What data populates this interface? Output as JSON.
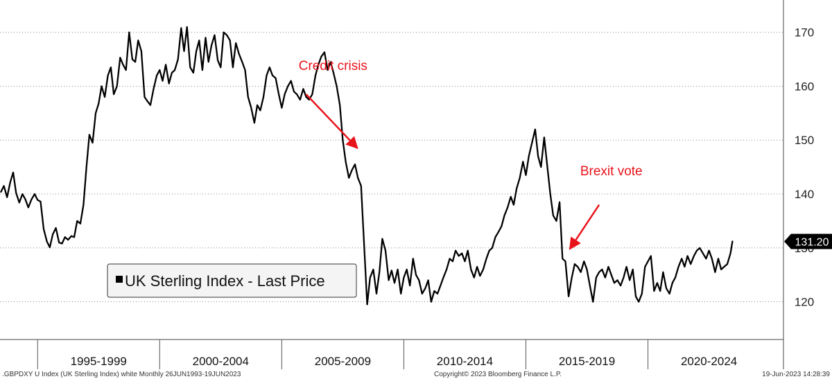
{
  "chart_data": {
    "type": "line",
    "yticks": [
      120,
      130,
      140,
      150,
      160,
      170
    ],
    "ylim": [
      113,
      176
    ],
    "xlim": [
      1993.46,
      2025.55
    ],
    "x_periods": [
      {
        "label": "1995-1999",
        "start": 1995.0,
        "end": 2000.0
      },
      {
        "label": "2000-2004",
        "start": 2000.0,
        "end": 2005.0
      },
      {
        "label": "2005-2009",
        "start": 2005.0,
        "end": 2010.0
      },
      {
        "label": "2010-2014",
        "start": 2010.0,
        "end": 2015.0
      },
      {
        "label": "2015-2019",
        "start": 2015.0,
        "end": 2020.0
      },
      {
        "label": "2020-2024",
        "start": 2020.0,
        "end": 2025.0
      }
    ],
    "series": [
      {
        "name": "UK Sterling Index - Last Price",
        "color": "#000000",
        "points": [
          [
            1993.5,
            140.4
          ],
          [
            1993.62,
            141.5
          ],
          [
            1993.75,
            139.4
          ],
          [
            1993.88,
            142.2
          ],
          [
            1994.0,
            144.0
          ],
          [
            1994.12,
            140.2
          ],
          [
            1994.25,
            138.4
          ],
          [
            1994.38,
            140.0
          ],
          [
            1994.5,
            139.0
          ],
          [
            1994.62,
            137.5
          ],
          [
            1994.75,
            139.0
          ],
          [
            1994.88,
            140.0
          ],
          [
            1995.0,
            138.9
          ],
          [
            1995.12,
            138.6
          ],
          [
            1995.25,
            133.5
          ],
          [
            1995.38,
            131.2
          ],
          [
            1995.5,
            130.1
          ],
          [
            1995.62,
            132.5
          ],
          [
            1995.75,
            133.7
          ],
          [
            1995.88,
            131.0
          ],
          [
            1996.0,
            130.8
          ],
          [
            1996.12,
            132.0
          ],
          [
            1996.25,
            131.5
          ],
          [
            1996.38,
            132.2
          ],
          [
            1996.5,
            132.0
          ],
          [
            1996.62,
            135.0
          ],
          [
            1996.75,
            134.5
          ],
          [
            1996.88,
            138.0
          ],
          [
            1997.0,
            145.0
          ],
          [
            1997.12,
            151.0
          ],
          [
            1997.25,
            149.5
          ],
          [
            1997.38,
            155.0
          ],
          [
            1997.5,
            156.8
          ],
          [
            1997.62,
            160.0
          ],
          [
            1997.75,
            158.0
          ],
          [
            1997.88,
            162.0
          ],
          [
            1998.0,
            163.5
          ],
          [
            1998.12,
            158.5
          ],
          [
            1998.25,
            160.0
          ],
          [
            1998.38,
            165.3
          ],
          [
            1998.5,
            164.0
          ],
          [
            1998.62,
            163.0
          ],
          [
            1998.75,
            170.0
          ],
          [
            1998.88,
            165.0
          ],
          [
            1999.0,
            164.5
          ],
          [
            1999.12,
            168.5
          ],
          [
            1999.25,
            166.5
          ],
          [
            1999.38,
            158.0
          ],
          [
            1999.5,
            157.2
          ],
          [
            1999.62,
            156.5
          ],
          [
            1999.75,
            159.5
          ],
          [
            1999.88,
            162.0
          ],
          [
            2000.0,
            163.0
          ],
          [
            2000.12,
            161.0
          ],
          [
            2000.25,
            164.0
          ],
          [
            2000.38,
            160.5
          ],
          [
            2000.5,
            162.5
          ],
          [
            2000.62,
            163.0
          ],
          [
            2000.75,
            165.0
          ],
          [
            2000.88,
            170.8
          ],
          [
            2001.0,
            166.5
          ],
          [
            2001.12,
            171.0
          ],
          [
            2001.25,
            163.5
          ],
          [
            2001.38,
            162.5
          ],
          [
            2001.5,
            166.5
          ],
          [
            2001.62,
            168.5
          ],
          [
            2001.75,
            163.0
          ],
          [
            2001.88,
            169.0
          ],
          [
            2002.0,
            164.5
          ],
          [
            2002.12,
            167.5
          ],
          [
            2002.25,
            169.5
          ],
          [
            2002.38,
            164.8
          ],
          [
            2002.5,
            163.5
          ],
          [
            2002.62,
            170.0
          ],
          [
            2002.75,
            169.5
          ],
          [
            2002.88,
            168.5
          ],
          [
            2003.0,
            163.5
          ],
          [
            2003.12,
            168.0
          ],
          [
            2003.25,
            166.0
          ],
          [
            2003.38,
            164.5
          ],
          [
            2003.5,
            163.0
          ],
          [
            2003.62,
            158.0
          ],
          [
            2003.75,
            156.0
          ],
          [
            2003.88,
            153.2
          ],
          [
            2004.0,
            156.5
          ],
          [
            2004.12,
            155.5
          ],
          [
            2004.25,
            158.0
          ],
          [
            2004.38,
            162.0
          ],
          [
            2004.5,
            163.5
          ],
          [
            2004.62,
            162.0
          ],
          [
            2004.75,
            161.5
          ],
          [
            2004.88,
            158.5
          ],
          [
            2005.0,
            156.0
          ],
          [
            2005.12,
            158.5
          ],
          [
            2005.25,
            160.0
          ],
          [
            2005.38,
            161.0
          ],
          [
            2005.5,
            159.0
          ],
          [
            2005.62,
            158.5
          ],
          [
            2005.75,
            157.5
          ],
          [
            2005.88,
            159.5
          ],
          [
            2006.0,
            158.0
          ],
          [
            2006.12,
            157.5
          ],
          [
            2006.25,
            158.5
          ],
          [
            2006.38,
            162.0
          ],
          [
            2006.5,
            164.0
          ],
          [
            2006.62,
            165.5
          ],
          [
            2006.75,
            166.3
          ],
          [
            2006.88,
            163.0
          ],
          [
            2007.0,
            164.5
          ],
          [
            2007.12,
            162.5
          ],
          [
            2007.25,
            160.0
          ],
          [
            2007.38,
            156.5
          ],
          [
            2007.5,
            150.0
          ],
          [
            2007.62,
            146.0
          ],
          [
            2007.75,
            143.0
          ],
          [
            2007.88,
            144.5
          ],
          [
            2008.0,
            145.5
          ],
          [
            2008.12,
            143.0
          ],
          [
            2008.25,
            141.5
          ],
          [
            2008.38,
            130.0
          ],
          [
            2008.5,
            119.5
          ],
          [
            2008.62,
            124.5
          ],
          [
            2008.75,
            126.0
          ],
          [
            2008.88,
            121.5
          ],
          [
            2009.0,
            125.5
          ],
          [
            2009.12,
            131.7
          ],
          [
            2009.25,
            129.5
          ],
          [
            2009.38,
            124.0
          ],
          [
            2009.5,
            125.8
          ],
          [
            2009.62,
            123.5
          ],
          [
            2009.75,
            126.0
          ],
          [
            2009.88,
            121.5
          ],
          [
            2010.0,
            124.5
          ],
          [
            2010.12,
            126.0
          ],
          [
            2010.25,
            123.0
          ],
          [
            2010.38,
            128.0
          ],
          [
            2010.5,
            125.0
          ],
          [
            2010.62,
            124.0
          ],
          [
            2010.75,
            121.5
          ],
          [
            2010.88,
            122.5
          ],
          [
            2011.0,
            124.0
          ],
          [
            2011.12,
            120.0
          ],
          [
            2011.25,
            122.0
          ],
          [
            2011.38,
            121.5
          ],
          [
            2011.5,
            123.0
          ],
          [
            2011.62,
            124.5
          ],
          [
            2011.75,
            126.0
          ],
          [
            2011.88,
            128.0
          ],
          [
            2012.0,
            127.5
          ],
          [
            2012.12,
            129.5
          ],
          [
            2012.25,
            128.5
          ],
          [
            2012.38,
            129.0
          ],
          [
            2012.5,
            127.5
          ],
          [
            2012.62,
            129.5
          ],
          [
            2012.75,
            126.0
          ],
          [
            2012.88,
            124.5
          ],
          [
            2013.0,
            126.5
          ],
          [
            2013.12,
            124.8
          ],
          [
            2013.25,
            126.0
          ],
          [
            2013.38,
            128.0
          ],
          [
            2013.5,
            129.5
          ],
          [
            2013.62,
            130.0
          ],
          [
            2013.75,
            132.0
          ],
          [
            2013.88,
            133.0
          ],
          [
            2014.0,
            134.0
          ],
          [
            2014.12,
            136.0
          ],
          [
            2014.25,
            137.5
          ],
          [
            2014.38,
            139.5
          ],
          [
            2014.5,
            138.0
          ],
          [
            2014.62,
            141.0
          ],
          [
            2014.75,
            143.0
          ],
          [
            2014.88,
            146.0
          ],
          [
            2015.0,
            143.5
          ],
          [
            2015.12,
            147.0
          ],
          [
            2015.25,
            149.5
          ],
          [
            2015.38,
            152.0
          ],
          [
            2015.5,
            147.0
          ],
          [
            2015.62,
            145.0
          ],
          [
            2015.75,
            150.5
          ],
          [
            2015.88,
            145.0
          ],
          [
            2016.0,
            140.0
          ],
          [
            2016.12,
            136.0
          ],
          [
            2016.25,
            135.0
          ],
          [
            2016.38,
            138.5
          ],
          [
            2016.5,
            128.0
          ],
          [
            2016.62,
            127.5
          ],
          [
            2016.75,
            121.0
          ],
          [
            2016.88,
            124.5
          ],
          [
            2017.0,
            127.0
          ],
          [
            2017.12,
            126.5
          ],
          [
            2017.25,
            125.5
          ],
          [
            2017.38,
            127.5
          ],
          [
            2017.5,
            126.0
          ],
          [
            2017.62,
            123.0
          ],
          [
            2017.75,
            120.0
          ],
          [
            2017.88,
            124.5
          ],
          [
            2018.0,
            125.5
          ],
          [
            2018.12,
            126.0
          ],
          [
            2018.25,
            124.5
          ],
          [
            2018.38,
            126.5
          ],
          [
            2018.5,
            125.0
          ],
          [
            2018.62,
            123.5
          ],
          [
            2018.75,
            124.0
          ],
          [
            2018.88,
            123.0
          ],
          [
            2019.0,
            124.5
          ],
          [
            2019.12,
            126.5
          ],
          [
            2019.25,
            124.0
          ],
          [
            2019.38,
            126.0
          ],
          [
            2019.5,
            121.0
          ],
          [
            2019.62,
            120.0
          ],
          [
            2019.75,
            121.5
          ],
          [
            2019.88,
            126.5
          ],
          [
            2020.0,
            127.5
          ],
          [
            2020.12,
            128.5
          ],
          [
            2020.25,
            122.0
          ],
          [
            2020.38,
            123.5
          ],
          [
            2020.5,
            122.0
          ],
          [
            2020.62,
            125.5
          ],
          [
            2020.75,
            122.5
          ],
          [
            2020.88,
            121.5
          ],
          [
            2021.0,
            123.5
          ],
          [
            2021.12,
            124.5
          ],
          [
            2021.25,
            126.5
          ],
          [
            2021.38,
            128.0
          ],
          [
            2021.5,
            126.5
          ],
          [
            2021.62,
            128.5
          ],
          [
            2021.75,
            127.0
          ],
          [
            2021.88,
            128.5
          ],
          [
            2022.0,
            129.5
          ],
          [
            2022.12,
            130.0
          ],
          [
            2022.25,
            129.0
          ],
          [
            2022.38,
            128.0
          ],
          [
            2022.5,
            129.5
          ],
          [
            2022.62,
            128.0
          ],
          [
            2022.75,
            125.5
          ],
          [
            2022.88,
            128.0
          ],
          [
            2023.0,
            126.0
          ],
          [
            2023.12,
            126.5
          ],
          [
            2023.25,
            127.0
          ],
          [
            2023.38,
            129.0
          ],
          [
            2023.46,
            131.2
          ]
        ]
      }
    ],
    "legend": {
      "label": "UK Sterling Index - Last Price",
      "placement": "bottom-left"
    },
    "last_value": {
      "label": "131.20",
      "value": 131.2
    },
    "annotations": [
      {
        "text": "Credit crisis",
        "x": 2007.1,
        "y": 163.0,
        "arrow_from": [
          2006.0,
          158.5
        ],
        "arrow_to": [
          2008.1,
          148.5
        ]
      },
      {
        "text": "Brexit vote",
        "x": 2018.5,
        "y": 143.5,
        "arrow_from": [
          2018.0,
          138.0
        ],
        "arrow_to": [
          2016.8,
          129.8
        ]
      }
    ],
    "grid": {
      "horizontal": true,
      "vertical": false,
      "style": "dotted"
    },
    "footer": {
      "left": ".GBPDXY U Index (UK Sterling Index) white  Monthly 26JUN1993-19JUN2023",
      "center": "Copyright© 2023 Bloomberg Finance L.P.",
      "right": "19-Jun-2023 14:28:39"
    }
  }
}
